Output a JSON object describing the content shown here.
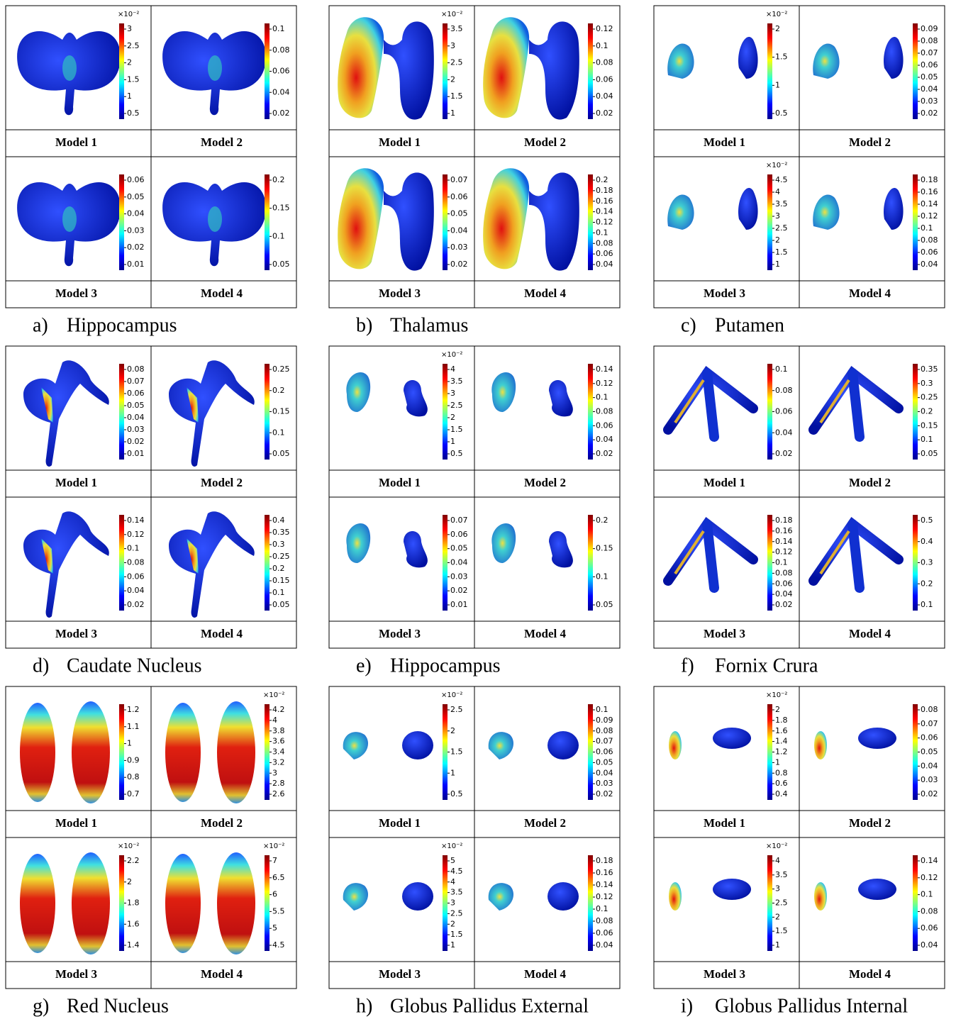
{
  "panels": [
    {
      "label": "a)",
      "title": "Hippocampus",
      "cells": [
        {
          "model": "Model 1",
          "exponent": "×10⁻²",
          "ticks": [
            3,
            2.5,
            2,
            1.5,
            1,
            0.5
          ]
        },
        {
          "model": "Model 2",
          "ticks": [
            0.1,
            0.08,
            0.06,
            0.04,
            0.02
          ]
        },
        {
          "model": "Model 3",
          "ticks": [
            0.06,
            0.05,
            0.04,
            0.03,
            0.02,
            0.01
          ]
        },
        {
          "model": "Model 4",
          "ticks": [
            0.2,
            0.15,
            0.1,
            0.05
          ]
        }
      ]
    },
    {
      "label": "b)",
      "title": "Thalamus",
      "cells": [
        {
          "model": "Model 1",
          "exponent": "×10⁻²",
          "ticks": [
            3.5,
            3,
            2.5,
            2,
            1.5,
            1
          ]
        },
        {
          "model": "Model 2",
          "ticks": [
            0.12,
            0.1,
            0.08,
            0.06,
            0.04,
            0.02
          ]
        },
        {
          "model": "Model 3",
          "ticks": [
            0.07,
            0.06,
            0.05,
            0.04,
            0.03,
            0.02
          ]
        },
        {
          "model": "Model 4",
          "ticks": [
            0.2,
            0.18,
            0.16,
            0.14,
            0.12,
            0.1,
            0.08,
            0.06,
            0.04
          ]
        }
      ]
    },
    {
      "label": "c)",
      "title": "Putamen",
      "cells": [
        {
          "model": "Model 1",
          "exponent": "×10⁻²",
          "ticks": [
            2,
            1.5,
            1,
            0.5
          ]
        },
        {
          "model": "Model 2",
          "ticks": [
            0.09,
            0.08,
            0.07,
            0.06,
            0.05,
            0.04,
            0.03,
            0.02
          ]
        },
        {
          "model": "Model 3",
          "exponent": "×10⁻²",
          "ticks": [
            4.5,
            4,
            3.5,
            3,
            2.5,
            2,
            1.5,
            1
          ]
        },
        {
          "model": "Model 4",
          "ticks": [
            0.18,
            0.16,
            0.14,
            0.12,
            0.1,
            0.08,
            0.06,
            0.04
          ]
        }
      ]
    },
    {
      "label": "d)",
      "title": "Caudate Nucleus",
      "cells": [
        {
          "model": "Model 1",
          "ticks": [
            0.08,
            0.07,
            0.06,
            0.05,
            0.04,
            0.03,
            0.02,
            0.01
          ]
        },
        {
          "model": "Model 2",
          "ticks": [
            0.25,
            0.2,
            0.15,
            0.1,
            0.05
          ]
        },
        {
          "model": "Model 3",
          "ticks": [
            0.14,
            0.12,
            0.1,
            0.08,
            0.06,
            0.04,
            0.02
          ]
        },
        {
          "model": "Model 4",
          "ticks": [
            0.4,
            0.35,
            0.3,
            0.25,
            0.2,
            0.15,
            0.1,
            0.05
          ]
        }
      ]
    },
    {
      "label": "e)",
      "title": "Hippocampus",
      "cells": [
        {
          "model": "Model 1",
          "exponent": "×10⁻²",
          "ticks": [
            4,
            3.5,
            3,
            2.5,
            2,
            1.5,
            1,
            0.5
          ]
        },
        {
          "model": "Model 2",
          "ticks": [
            0.14,
            0.12,
            0.1,
            0.08,
            0.06,
            0.04,
            0.02
          ]
        },
        {
          "model": "Model 3",
          "ticks": [
            0.07,
            0.06,
            0.05,
            0.04,
            0.03,
            0.02,
            0.01
          ]
        },
        {
          "model": "Model 4",
          "ticks": [
            0.2,
            0.15,
            0.1,
            0.05
          ]
        }
      ]
    },
    {
      "label": "f)",
      "title": "Fornix Crura",
      "cells": [
        {
          "model": "Model 1",
          "ticks": [
            0.1,
            0.08,
            0.06,
            0.04,
            0.02
          ]
        },
        {
          "model": "Model 2",
          "ticks": [
            0.35,
            0.3,
            0.25,
            0.2,
            0.15,
            0.1,
            0.05
          ]
        },
        {
          "model": "Model 3",
          "ticks": [
            0.18,
            0.16,
            0.14,
            0.12,
            0.1,
            0.08,
            0.06,
            0.04,
            0.02
          ]
        },
        {
          "model": "Model 4",
          "ticks": [
            0.5,
            0.4,
            0.3,
            0.2,
            0.1
          ]
        }
      ]
    },
    {
      "label": "g)",
      "title": "Red Nucleus",
      "cells": [
        {
          "model": "Model 1",
          "ticks": [
            1.2,
            1.1,
            1,
            0.9,
            0.8,
            0.7
          ]
        },
        {
          "model": "Model 2",
          "exponent": "×10⁻²",
          "ticks": [
            4.2,
            4,
            3.8,
            3.6,
            3.4,
            3.2,
            3,
            2.8,
            2.6
          ]
        },
        {
          "model": "Model 3",
          "exponent": "×10⁻²",
          "ticks": [
            2.2,
            2,
            1.8,
            1.6,
            1.4
          ]
        },
        {
          "model": "Model 4",
          "exponent": "×10⁻²",
          "ticks": [
            7,
            6.5,
            6,
            5.5,
            5,
            4.5
          ]
        }
      ]
    },
    {
      "label": "h)",
      "title": "Globus Pallidus External",
      "cells": [
        {
          "model": "Model 1",
          "exponent": "×10⁻²",
          "ticks": [
            2.5,
            2,
            1.5,
            1,
            0.5
          ]
        },
        {
          "model": "Model 2",
          "ticks": [
            0.1,
            0.09,
            0.08,
            0.07,
            0.06,
            0.05,
            0.04,
            0.03,
            0.02
          ]
        },
        {
          "model": "Model 3",
          "exponent": "×10⁻²",
          "ticks": [
            5,
            4.5,
            4,
            3.5,
            3,
            2.5,
            2,
            1.5,
            1
          ]
        },
        {
          "model": "Model 4",
          "ticks": [
            0.18,
            0.16,
            0.14,
            0.12,
            0.1,
            0.08,
            0.06,
            0.04
          ]
        }
      ]
    },
    {
      "label": "i)",
      "title": "Globus Pallidus Internal",
      "cells": [
        {
          "model": "Model 1",
          "exponent": "×10⁻²",
          "ticks": [
            2,
            1.8,
            1.6,
            1.4,
            1.2,
            1,
            0.8,
            0.6,
            0.4
          ]
        },
        {
          "model": "Model 2",
          "ticks": [
            0.08,
            0.07,
            0.06,
            0.05,
            0.04,
            0.03,
            0.02
          ]
        },
        {
          "model": "Model 3",
          "exponent": "×10⁻²",
          "ticks": [
            4,
            3.5,
            3,
            2.5,
            2,
            1.5,
            1
          ]
        },
        {
          "model": "Model 4",
          "ticks": [
            0.14,
            0.12,
            0.1,
            0.08,
            0.06,
            0.04
          ]
        }
      ]
    }
  ]
}
